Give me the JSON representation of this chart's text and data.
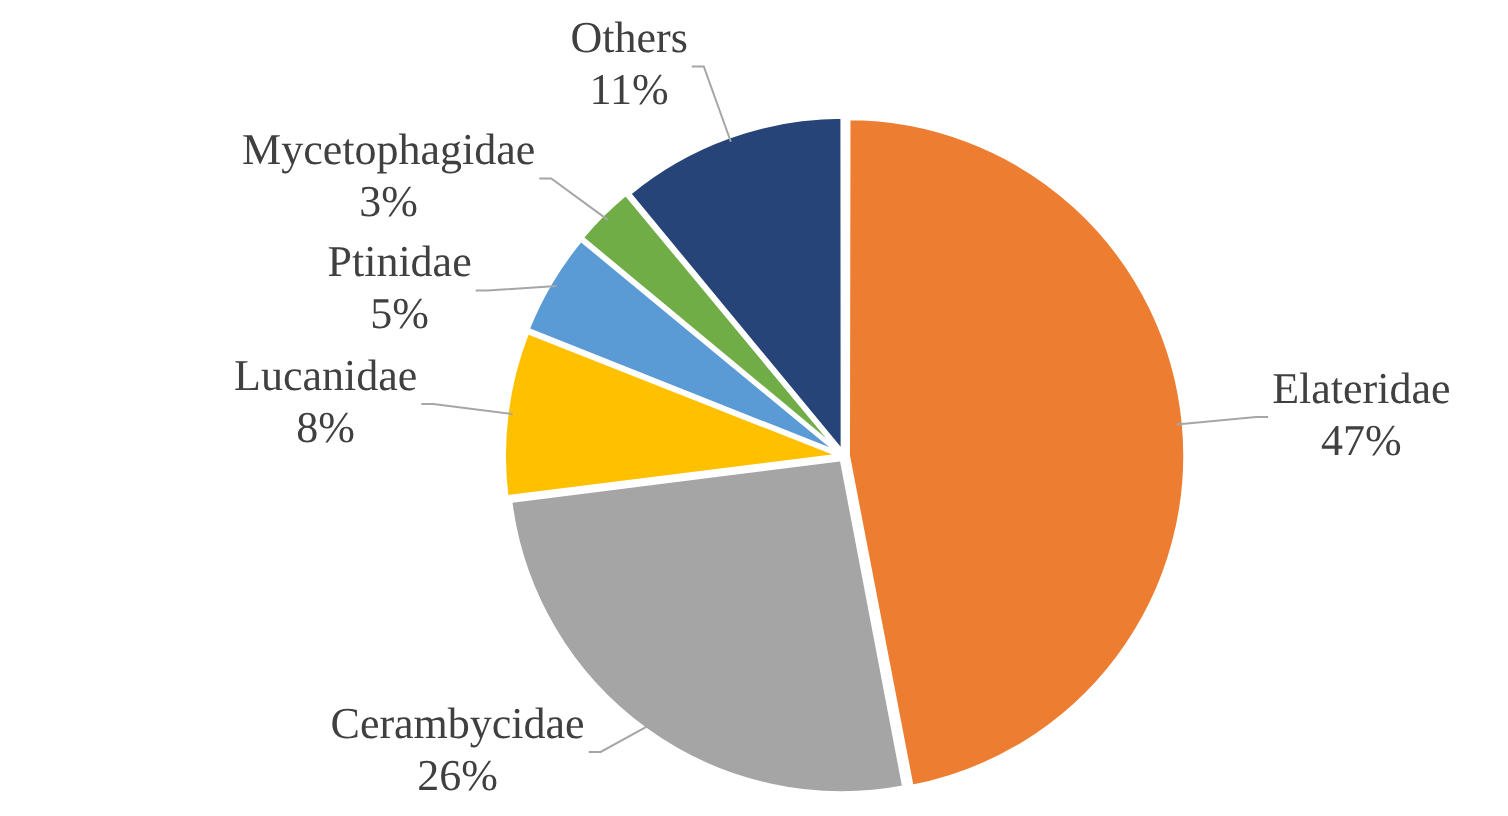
{
  "chart_data": {
    "type": "pie",
    "categories": [
      "Elateridae",
      "Cerambycidae",
      "Lucanidae",
      "Ptinidae",
      "Mycetophagidae",
      "Others"
    ],
    "values": [
      47,
      26,
      8,
      5,
      3,
      11
    ],
    "value_labels": [
      "47%",
      "26%",
      "8%",
      "5%",
      "3%",
      "11%"
    ],
    "colors": [
      "#ed7d31",
      "#a5a5a5",
      "#ffc000",
      "#5b9bd5",
      "#70ad47",
      "#264478"
    ],
    "legend": false
  }
}
